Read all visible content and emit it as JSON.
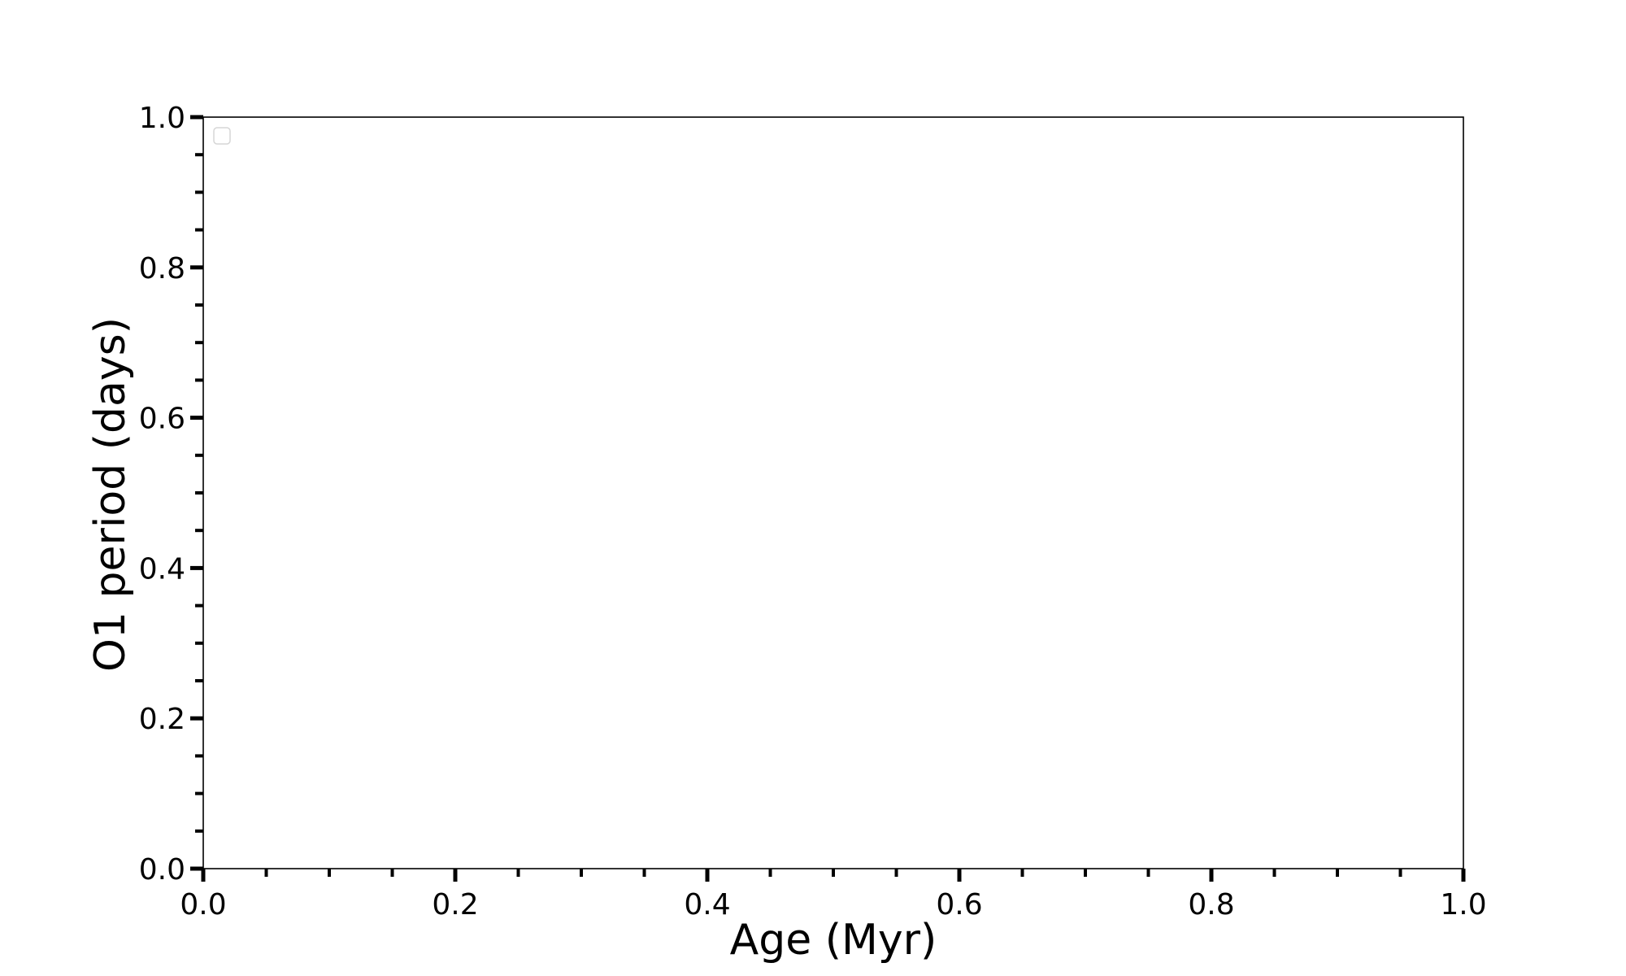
{
  "chart_data": {
    "type": "line",
    "title": "",
    "xlabel": "Age (Myr)",
    "ylabel": "O1 period (days)",
    "xlim": [
      0.0,
      1.0
    ],
    "ylim": [
      0.0,
      1.0
    ],
    "x_ticks": [
      "0.0",
      "0.2",
      "0.4",
      "0.6",
      "0.8",
      "1.0"
    ],
    "y_ticks": [
      "0.0",
      "0.2",
      "0.4",
      "0.6",
      "0.8",
      "1.0"
    ],
    "minor_tick_step": 0.05,
    "grid": false,
    "legend": {
      "placement": "top-left",
      "entries": []
    },
    "series": []
  }
}
